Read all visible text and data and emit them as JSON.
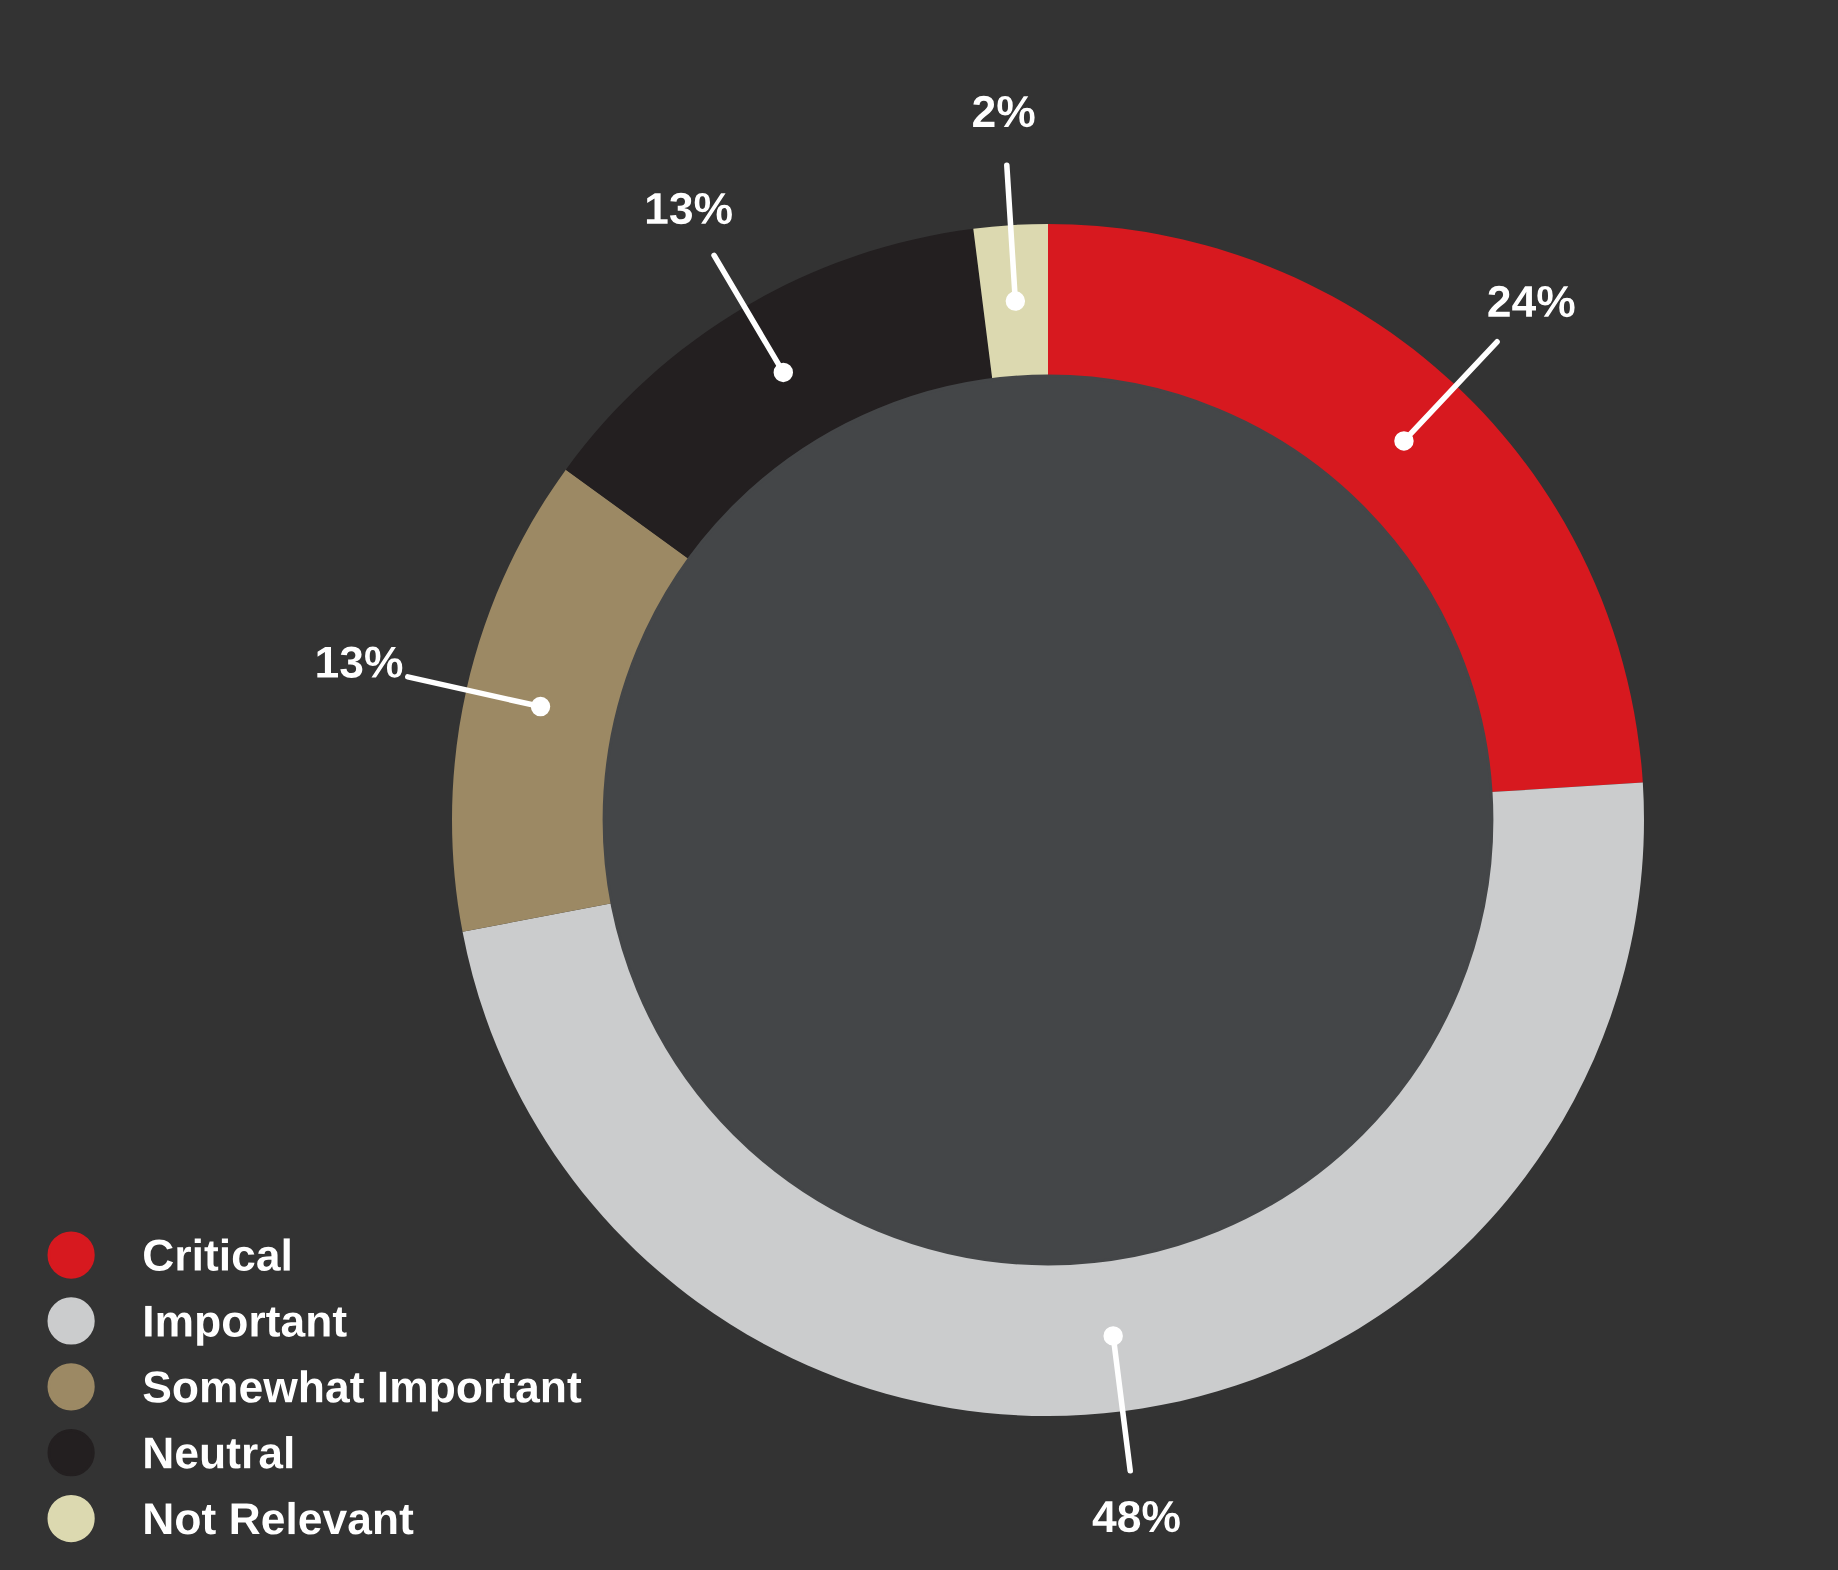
{
  "chart_data": {
    "type": "donut",
    "categories": [
      "Critical",
      "Important",
      "Somewhat Important",
      "Neutral",
      "Not Relevant"
    ],
    "values": [
      24,
      48,
      13,
      13,
      2
    ],
    "value_labels": [
      "24%",
      "48%",
      "13%",
      "13%",
      "2%"
    ],
    "colors": [
      "#d7191f",
      "#cbcccd",
      "#9c8964",
      "#231f20",
      "#dcd9b0"
    ],
    "legend": "bottom left"
  }
}
